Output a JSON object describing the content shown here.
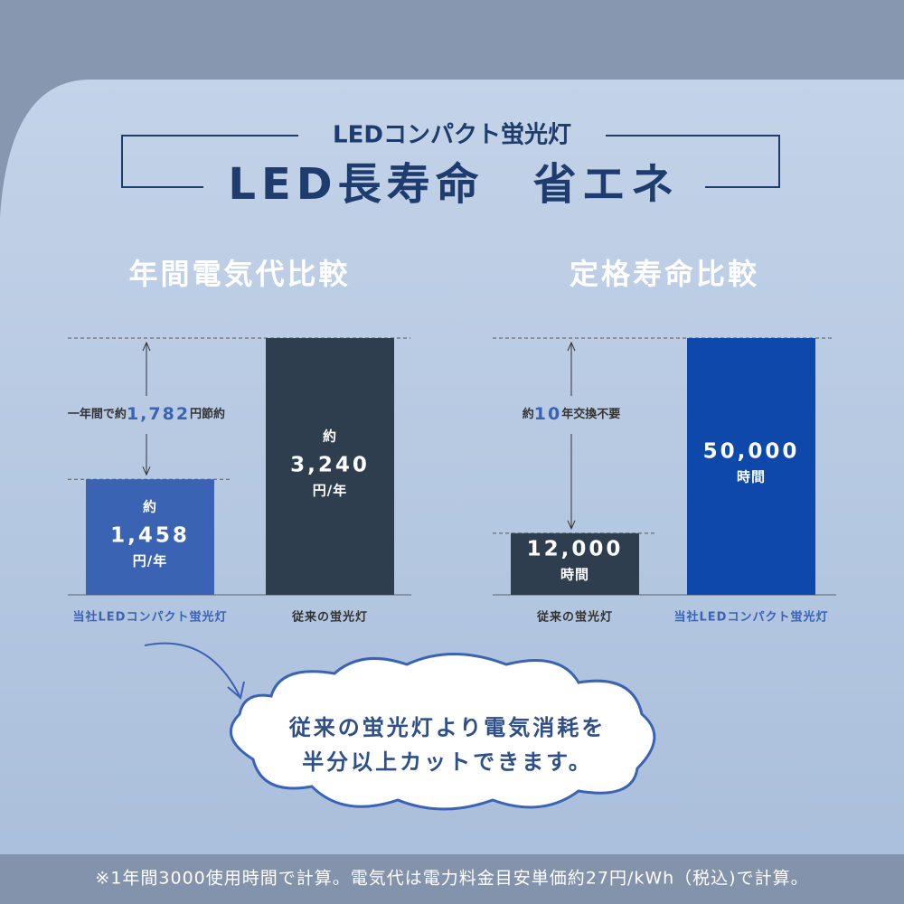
{
  "header": {
    "subtitle": "LEDコンパクト蛍光灯",
    "title": "LED長寿命　省エネ"
  },
  "chart_data": [
    {
      "type": "bar",
      "title": "年間電気代比較",
      "categories": [
        "当社LEDコンパクト蛍光灯",
        "従来の蛍光灯"
      ],
      "values": [
        1458,
        3240
      ],
      "value_labels": [
        "1,458",
        "3,240"
      ],
      "value_prefix": "約",
      "value_unit": "円/年",
      "colors": [
        "#3b63b3",
        "#2f3e4e"
      ],
      "label_colors": [
        "#3b63b3",
        "#333333"
      ],
      "ylim": [
        0,
        3240
      ],
      "annotation": {
        "before": "一年間で約",
        "highlight": "1,782",
        "after": "円節約"
      }
    },
    {
      "type": "bar",
      "title": "定格寿命比較",
      "categories": [
        "従来の蛍光灯",
        "当社LEDコンパクト蛍光灯"
      ],
      "values": [
        12000,
        50000
      ],
      "value_labels": [
        "12,000",
        "50,000"
      ],
      "value_unit": "時間",
      "colors": [
        "#2f3e4e",
        "#0e48aa"
      ],
      "label_colors": [
        "#333333",
        "#3b63b3"
      ],
      "ylim": [
        0,
        50000
      ],
      "annotation": {
        "before": "約",
        "highlight": "10",
        "after": "年交換不要"
      }
    }
  ],
  "callout": {
    "lines": [
      "従来の蛍光灯より電気消耗を",
      "半分以上カットできます。"
    ]
  },
  "footnote": "※1年間3000使用時間で計算。電気代は電力料金目安単価約27円/kWh（税込)で計算。"
}
